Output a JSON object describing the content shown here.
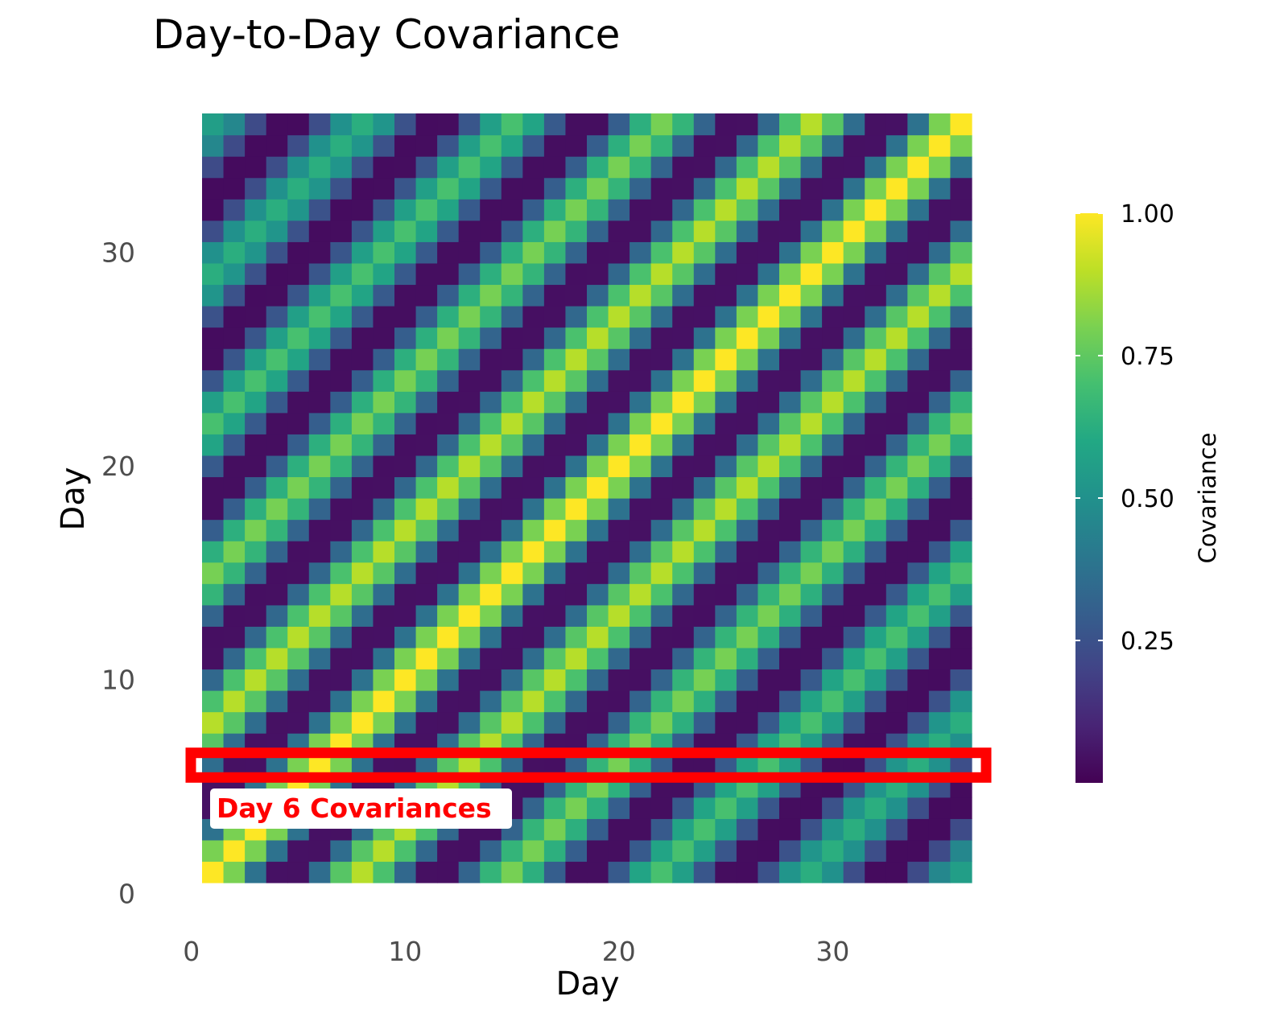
{
  "chart_data": {
    "type": "heatmap",
    "title": "Day-to-Day Covariance",
    "xlabel": "Day",
    "ylabel": "Day",
    "x_ticks": [
      "0",
      "10",
      "20",
      "30"
    ],
    "y_ticks": [
      "0",
      "10",
      "20",
      "30"
    ],
    "x_range": [
      0.5,
      36.5
    ],
    "y_range": [
      0.5,
      36.5
    ],
    "n_days": 36,
    "period_days": 7,
    "colorscale": "viridis",
    "grid": false,
    "values_description": "covariance(i,j) = 0.5 * (1 + cos(2*pi*(i-j)/7)) * exp(-|i-j|/60), diagonal = 1.00",
    "colorbar": {
      "title": "Covariance",
      "ticks": [
        "0.25",
        "0.50",
        "0.75",
        "1.00"
      ],
      "range": [
        0,
        1
      ]
    },
    "annotation": {
      "label": "Day 6 Covariances",
      "highlight_row": 6,
      "color": "#ff0000"
    }
  }
}
